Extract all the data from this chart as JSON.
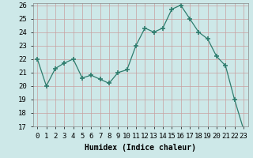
{
  "x": [
    0,
    1,
    2,
    3,
    4,
    5,
    6,
    7,
    8,
    9,
    10,
    11,
    12,
    13,
    14,
    15,
    16,
    17,
    18,
    19,
    20,
    21,
    22,
    23
  ],
  "y": [
    22.0,
    20.0,
    21.3,
    21.7,
    22.0,
    20.6,
    20.8,
    20.5,
    20.2,
    21.0,
    21.2,
    23.0,
    24.3,
    24.0,
    24.3,
    25.7,
    26.0,
    25.0,
    24.0,
    23.5,
    22.2,
    21.5,
    19.0,
    16.8
  ],
  "line_color": "#2e7d6e",
  "marker": "+",
  "marker_size": 4,
  "bg_color": "#cde8e8",
  "grid_color": "#b0d4d4",
  "xlabel": "Humidex (Indice chaleur)",
  "ylim": [
    17,
    26
  ],
  "yticks": [
    17,
    18,
    19,
    20,
    21,
    22,
    23,
    24,
    25,
    26
  ],
  "xticks": [
    0,
    1,
    2,
    3,
    4,
    5,
    6,
    7,
    8,
    9,
    10,
    11,
    12,
    13,
    14,
    15,
    16,
    17,
    18,
    19,
    20,
    21,
    22,
    23
  ],
  "label_fontsize": 7,
  "tick_fontsize": 6.5
}
